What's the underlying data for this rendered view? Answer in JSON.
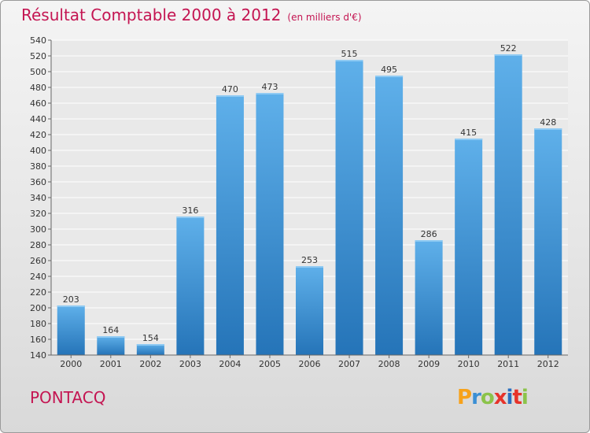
{
  "chart_data": {
    "type": "bar",
    "title": "Résultat Comptable 2000 à 2012",
    "subtitle": "(en milliers d'€)",
    "categories": [
      "2000",
      "2001",
      "2002",
      "2003",
      "2004",
      "2005",
      "2006",
      "2007",
      "2008",
      "2009",
      "2010",
      "2011",
      "2012"
    ],
    "values": [
      203,
      164,
      154,
      316,
      470,
      473,
      253,
      515,
      495,
      286,
      415,
      522,
      428
    ],
    "ylim": [
      140,
      540
    ],
    "ystep": 20,
    "grid": true,
    "xlabel": "",
    "ylabel": ""
  },
  "location": "PONTACQ",
  "brand": {
    "letters": [
      "P",
      "r",
      "o",
      "x",
      "i",
      "t",
      "i"
    ],
    "colors": [
      "#f7a21b",
      "#3b8fd4",
      "#8bc34a",
      "#e6332a",
      "#2a6fbf",
      "#e6332a",
      "#8bc34a"
    ]
  },
  "colors": {
    "bar_light": "#5fb0ea",
    "bar_dark": "#2574b8",
    "title": "#c41552"
  }
}
